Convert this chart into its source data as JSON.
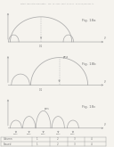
{
  "header": "Patent Application Publication    Feb. 12, 2009  Sheet 14 of 14   US 2009/0040822 A1",
  "bg_color": "#f5f3ee",
  "line_color": "#999999",
  "arch_color": "#aaaaaa",
  "text_color": "#777777",
  "fig_labels": [
    "Fig. 18a",
    "Fig. 18b",
    "Fig. 18c"
  ],
  "panel_count": 3,
  "legend_rows": [
    [
      "Column",
      "1",
      "2",
      "3",
      "4"
    ],
    [
      "Erased",
      "1",
      "2",
      "3",
      "4"
    ]
  ]
}
